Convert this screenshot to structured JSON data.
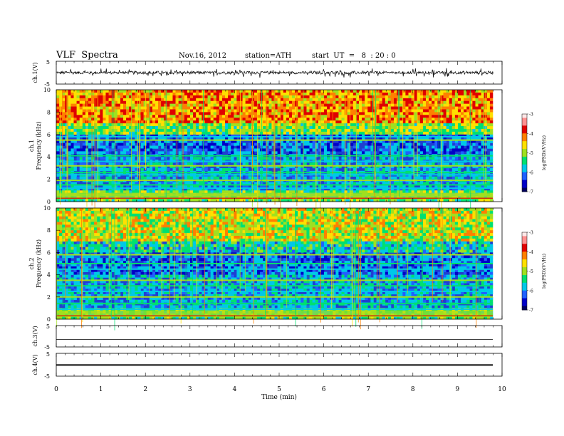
{
  "header": {
    "title": "VLF  Spectra",
    "date": "Nov.16, 2012",
    "station": "station=ATH",
    "start_ut": "start  UT  =   8  : 20 : 0"
  },
  "colors": {
    "spectrogram_background": "#1f3fd1",
    "trace": "#000000",
    "colormap": [
      "#000060",
      "#0000c8",
      "#2060ff",
      "#00c8e8",
      "#00e070",
      "#a0e020",
      "#ffe000",
      "#ff8000",
      "#e00000",
      "#ff9090",
      "#ffe8e8"
    ]
  },
  "chart_data": [
    {
      "type": "line",
      "panel": "ch1-waveform",
      "ylabel": "ch.1(V)",
      "ylim": [
        -5,
        5
      ],
      "yticks": [
        "5",
        "-5"
      ],
      "description_values": "noise around 0 V, amplitude ~1 V, spikes up to ~1.8 V"
    },
    {
      "type": "heatmap",
      "panel": "ch1-spectrogram",
      "ylabel": "ch.1\nFrequency  (kHz)",
      "ylim": [
        0,
        10
      ],
      "yticks": [
        "0",
        "2",
        "4",
        "6",
        "8",
        "10"
      ],
      "xlim": [
        0,
        9.8
      ],
      "bands_khz": [
        0.6,
        1.2,
        1.5,
        1.9,
        2.4,
        2.6,
        3.2,
        3.6,
        4.1,
        5.5,
        5.8
      ],
      "colorbar": {
        "label": "log(PSD)(V²/Hz)",
        "ticks": [
          "-3",
          "-4",
          "-5",
          "-6",
          "-7"
        ],
        "range": [
          -7,
          -3
        ]
      }
    },
    {
      "type": "heatmap",
      "panel": "ch2-spectrogram",
      "ylabel": "ch.2\nFrequency  (kHz)",
      "ylim": [
        0,
        10
      ],
      "yticks": [
        "0",
        "2",
        "4",
        "6",
        "8",
        "10"
      ],
      "xlim": [
        0,
        9.8
      ],
      "bands_khz": [
        0.3,
        0.9,
        1.4,
        2.0,
        2.5,
        3.0,
        3.5,
        4.5,
        5.0,
        5.8
      ],
      "colorbar": {
        "label": "log(PSD)(V²/Hz)",
        "ticks": [
          "-3",
          "-4",
          "-5",
          "-6",
          "-7"
        ],
        "range": [
          -7,
          -3
        ]
      }
    },
    {
      "type": "line",
      "panel": "ch3-waveform",
      "ylabel": "ch.3(V)",
      "ylim": [
        -5,
        5
      ],
      "yticks": [
        "5",
        "-5"
      ]
    },
    {
      "type": "line",
      "panel": "ch4-waveform",
      "ylabel": "ch.4(V)",
      "ylim": [
        -5,
        5
      ],
      "yticks": [
        "5",
        "-5"
      ]
    }
  ],
  "xaxis": {
    "label": "Time  (min)",
    "ticks": [
      "0",
      "1",
      "2",
      "3",
      "4",
      "5",
      "6",
      "7",
      "8",
      "9",
      "10"
    ],
    "range": [
      0,
      10
    ]
  }
}
